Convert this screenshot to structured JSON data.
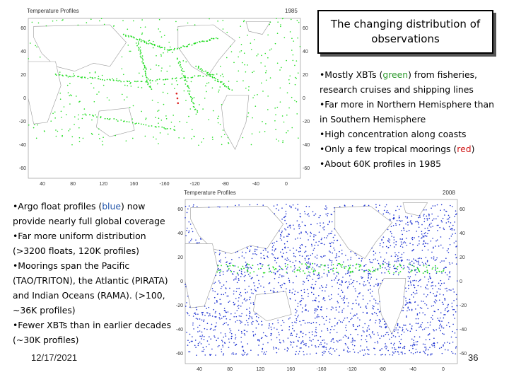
{
  "slide": {
    "title": "The changing distribution of observations",
    "top_bullets": [
      {
        "parts": [
          {
            "t": "•Mostly XBTs ("
          },
          {
            "t": "green",
            "c": "green"
          },
          {
            "t": ") from fisheries, research cruises and shipping lines"
          }
        ]
      },
      {
        "parts": [
          {
            "t": "•Far more in Northern Hemisphere than in Southern Hemisphere"
          }
        ]
      },
      {
        "parts": [
          {
            "t": "•High concentration along coasts"
          }
        ]
      },
      {
        "parts": [
          {
            "t": "•Only a few tropical moorings ("
          },
          {
            "t": "red",
            "c": "red"
          },
          {
            "t": ")"
          }
        ]
      },
      {
        "parts": [
          {
            "t": "•About 60K profiles in 1985"
          }
        ]
      }
    ],
    "bottom_bullets": [
      {
        "parts": [
          {
            "t": "•Argo float profiles ("
          },
          {
            "t": "blue",
            "c": "blue"
          },
          {
            "t": ") now provide nearly full global coverage"
          }
        ]
      },
      {
        "parts": [
          {
            "t": "•Far more uniform distribution (>3200 floats, 120K profiles)"
          }
        ]
      },
      {
        "parts": [
          {
            "t": "•Moorings span the Pacific (TAO/TRITON), the Atlantic (PIRATA) and Indian Oceans (RAMA). (>100, ~36K profiles)"
          }
        ]
      },
      {
        "parts": [
          {
            "t": "•Fewer XBTs than in earlier decades (~30K profiles)"
          }
        ]
      }
    ],
    "date": "12/17/2021",
    "slide_number": "36"
  },
  "maps": {
    "top": {
      "title": "Temperature Profiles",
      "year": "1985",
      "lat_labels": [
        "60",
        "40",
        "20",
        "0",
        "-20",
        "-40",
        "-60"
      ],
      "lon_labels": [
        "40",
        "80",
        "120",
        "160",
        "-160",
        "-120",
        "-80",
        "-40",
        "0"
      ],
      "point_color": "#22dd22",
      "mooring_color": "#dd2222"
    },
    "bottom": {
      "title": "Temperature Profiles",
      "year": "2008",
      "lat_labels": [
        "60",
        "40",
        "20",
        "0",
        "-20",
        "-40",
        "-60"
      ],
      "lon_labels": [
        "40",
        "80",
        "120",
        "160",
        "-160",
        "-120",
        "-80",
        "-40",
        "0"
      ],
      "point_color": "#1a2fd0",
      "secondary_color": "#22dd22"
    }
  }
}
